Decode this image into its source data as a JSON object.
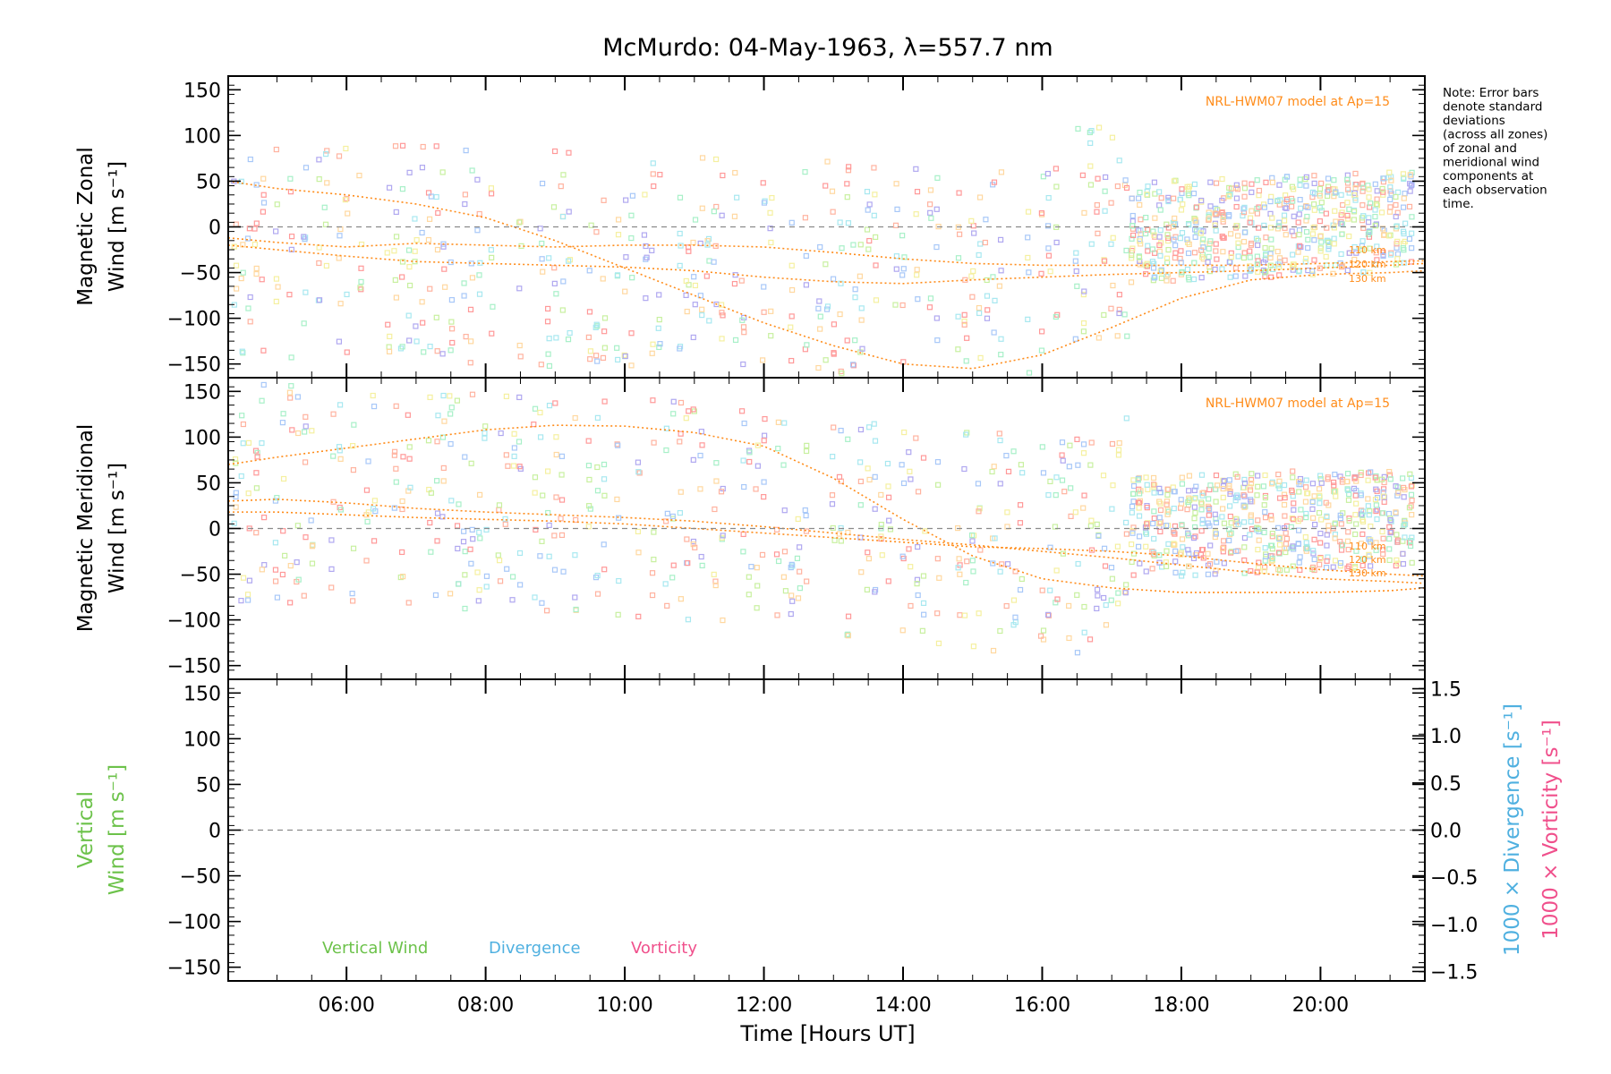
{
  "chart_data": {
    "type": "scatter",
    "title": "McMurdo: 04-May-1963, λ=557.7 nm",
    "xlabel": "Time [Hours UT]",
    "xlim": [
      4.3,
      21.5
    ],
    "xticks": [
      6,
      8,
      10,
      12,
      14,
      16,
      18,
      20
    ],
    "xtick_labels": [
      "06:00",
      "08:00",
      "10:00",
      "12:00",
      "14:00",
      "16:00",
      "18:00",
      "20:00"
    ],
    "note": [
      "Note: Error bars",
      "denote standard",
      "deviations",
      "(across all zones)",
      "of zonal and",
      "meridional wind",
      "components at",
      "each observation",
      "time."
    ],
    "panels": [
      {
        "name": "zonal",
        "ylabel_line1": "Magnetic Zonal",
        "ylabel_line2": "Wind [m s⁻¹]",
        "ylim": [
          -165,
          165
        ],
        "yticks": [
          -150,
          -100,
          -50,
          0,
          50,
          100,
          150
        ],
        "ytick_labels": [
          "−150",
          "−100",
          "−50",
          "0",
          "50",
          "100",
          "150"
        ],
        "model_label": "NRL-HWM07 model at Ap=15",
        "model_series": [
          {
            "name": "110 km",
            "x": [
              4.3,
              5,
              6,
              7,
              8,
              9,
              10,
              11,
              12,
              13,
              14,
              15,
              16,
              17,
              18,
              19,
              20,
              21,
              21.5
            ],
            "values": [
              -12,
              -17,
              -22,
              -18,
              -20,
              -22,
              -20,
              -20,
              -22,
              -28,
              -35,
              -40,
              -42,
              -42,
              -42,
              -42,
              -40,
              -38,
              -37
            ]
          },
          {
            "name": "120 km",
            "x": [
              4.3,
              5,
              6,
              7,
              8,
              9,
              10,
              11,
              12,
              13,
              14,
              15,
              16,
              17,
              18,
              19,
              20,
              21,
              21.5
            ],
            "values": [
              -20,
              -25,
              -32,
              -38,
              -40,
              -42,
              -44,
              -48,
              -55,
              -60,
              -62,
              -58,
              -55,
              -52,
              -50,
              -48,
              -45,
              -42,
              -40
            ]
          },
          {
            "name": "130 km",
            "x": [
              4.3,
              5,
              6,
              7,
              8,
              9,
              10,
              11,
              12,
              13,
              14,
              15,
              16,
              17,
              18,
              19,
              20,
              21,
              21.5
            ],
            "values": [
              50,
              42,
              35,
              25,
              10,
              -15,
              -45,
              -75,
              -105,
              -130,
              -150,
              -155,
              -140,
              -110,
              -78,
              -58,
              -52,
              -50,
              -48
            ]
          }
        ]
      },
      {
        "name": "meridional",
        "ylabel_line1": "Magnetic Meridional",
        "ylabel_line2": "Wind [m s⁻¹]",
        "ylim": [
          -165,
          165
        ],
        "yticks": [
          -150,
          -100,
          -50,
          0,
          50,
          100,
          150
        ],
        "ytick_labels": [
          "−150",
          "−100",
          "−50",
          "0",
          "50",
          "100",
          "150"
        ],
        "model_label": "NRL-HWM07 model at Ap=15",
        "model_series": [
          {
            "name": "110 km",
            "x": [
              4.3,
              5,
              6,
              7,
              8,
              9,
              10,
              11,
              12,
              13,
              14,
              15,
              16,
              17,
              18,
              19,
              20,
              21,
              21.5
            ],
            "values": [
              30,
              32,
              28,
              22,
              18,
              15,
              12,
              8,
              2,
              -5,
              -12,
              -18,
              -25,
              -32,
              -40,
              -48,
              -55,
              -58,
              -60
            ]
          },
          {
            "name": "120 km",
            "x": [
              4.3,
              5,
              6,
              7,
              8,
              9,
              10,
              11,
              12,
              13,
              14,
              15,
              16,
              17,
              18,
              19,
              20,
              21,
              21.5
            ],
            "values": [
              18,
              18,
              15,
              12,
              10,
              8,
              5,
              0,
              -5,
              -10,
              -15,
              -20,
              -22,
              -25,
              -30,
              -38,
              -45,
              -50,
              -52
            ]
          },
          {
            "name": "130 km",
            "x": [
              4.3,
              5,
              6,
              7,
              8,
              9,
              10,
              11,
              12,
              13,
              14,
              15,
              16,
              17,
              18,
              19,
              20,
              21,
              21.5
            ],
            "values": [
              70,
              78,
              88,
              98,
              108,
              113,
              112,
              105,
              90,
              55,
              10,
              -30,
              -55,
              -65,
              -70,
              -70,
              -70,
              -68,
              -65
            ]
          }
        ]
      },
      {
        "name": "vertical",
        "ylabel_line1": "Vertical",
        "ylabel_line2": "Wind [m s⁻¹]",
        "ylim": [
          -165,
          165
        ],
        "yticks": [
          -150,
          -100,
          -50,
          0,
          50,
          100,
          150
        ],
        "ytick_labels": [
          "−150",
          "−100",
          "−50",
          "0",
          "50",
          "100",
          "150"
        ],
        "right_ylim": [
          -1.6,
          1.6
        ],
        "right_yticks": [
          -1.5,
          -1.0,
          -0.5,
          0.0,
          0.5,
          1.0,
          1.5
        ],
        "right_ytick_labels": [
          "−1.5",
          "−1.0",
          "−0.5",
          "0.0",
          "0.5",
          "1.0",
          "1.5"
        ],
        "right_ylabel_divergence": "1000 × Divergence [s⁻¹]",
        "right_ylabel_vorticity": "1000 × Vorticity [s⁻¹]",
        "legend": [
          "Vertical Wind",
          "Divergence",
          "Vorticity"
        ],
        "series": []
      }
    ],
    "colors": {
      "axis": "#000000",
      "model": "#ff8c1a",
      "vertical": "#6cc24a",
      "divergence": "#4fb0e0",
      "vorticity": "#f0508c",
      "zero_line": "#8a8a8a",
      "scatter_palette": [
        "#ff9999",
        "#ffb3a0",
        "#ffd8a0",
        "#f5f0a0",
        "#c8f0a0",
        "#a8f0c8",
        "#a8e8f0",
        "#a8c8f8",
        "#b0a8f0"
      ]
    }
  }
}
